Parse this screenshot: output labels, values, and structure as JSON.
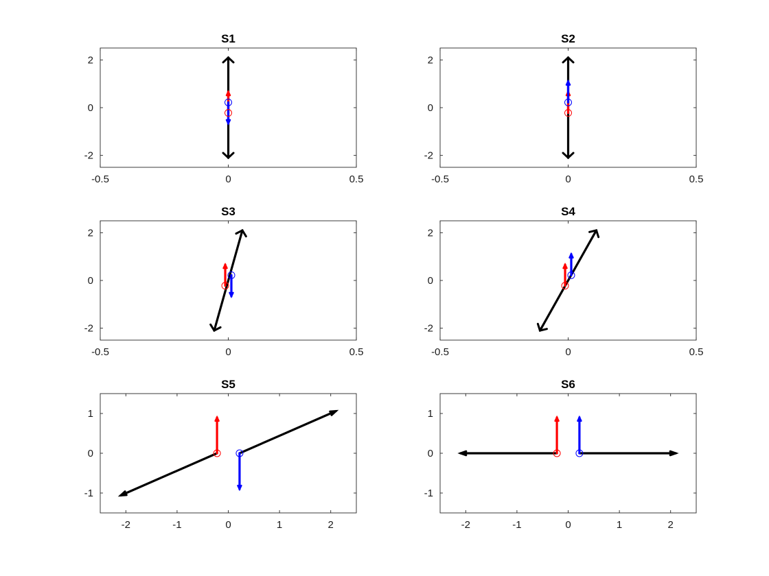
{
  "chart_data": [
    {
      "type": "line",
      "title": "S1",
      "xlim": [
        -0.5,
        0.5
      ],
      "ylim": [
        -2.5,
        2.5
      ],
      "xticks": [
        -0.5,
        0,
        0.5
      ],
      "xtick_labels": [
        "-0.5",
        "0",
        "0.5"
      ],
      "yticks": [
        -2,
        0,
        2
      ],
      "ytick_labels": [
        "-2",
        "0",
        "2"
      ],
      "grid": false,
      "black_arrows": [
        {
          "x1": 0,
          "y1": -2.1,
          "x2": 0,
          "y2": 2.1,
          "double": true
        }
      ],
      "red_marker": {
        "x": 0,
        "y": -0.22
      },
      "blue_marker": {
        "x": 0,
        "y": 0.22
      },
      "red_arrow": {
        "x1": 0,
        "y1": -0.22,
        "x2": 0,
        "y2": 0.66
      },
      "blue_arrow": {
        "x1": 0,
        "y1": 0.22,
        "x2": 0,
        "y2": -0.66
      }
    },
    {
      "type": "line",
      "title": "S2",
      "xlim": [
        -0.5,
        0.5
      ],
      "ylim": [
        -2.5,
        2.5
      ],
      "xticks": [
        -0.5,
        0,
        0.5
      ],
      "xtick_labels": [
        "-0.5",
        "0",
        "0.5"
      ],
      "yticks": [
        -2,
        0,
        2
      ],
      "ytick_labels": [
        "-2",
        "0",
        "2"
      ],
      "grid": false,
      "black_arrows": [
        {
          "x1": 0,
          "y1": -2.1,
          "x2": 0,
          "y2": 2.1,
          "double": true
        }
      ],
      "red_marker": {
        "x": 0,
        "y": -0.22
      },
      "blue_marker": {
        "x": 0,
        "y": 0.22
      },
      "red_arrow": {
        "x1": 0,
        "y1": -0.22,
        "x2": 0,
        "y2": 0.66
      },
      "blue_arrow": {
        "x1": 0,
        "y1": 0.22,
        "x2": 0,
        "y2": 1.1
      }
    },
    {
      "type": "line",
      "title": "S3",
      "xlim": [
        -0.5,
        0.5
      ],
      "ylim": [
        -2.5,
        2.5
      ],
      "xticks": [
        -0.5,
        0,
        0.5
      ],
      "xtick_labels": [
        "-0.5",
        "0",
        "0.5"
      ],
      "yticks": [
        -2,
        0,
        2
      ],
      "ytick_labels": [
        "-2",
        "0",
        "2"
      ],
      "grid": false,
      "black_arrows": [
        {
          "x1": -0.055,
          "y1": -2.1,
          "x2": 0.055,
          "y2": 2.1,
          "double": true
        }
      ],
      "red_marker": {
        "x": -0.012,
        "y": -0.22
      },
      "blue_marker": {
        "x": 0.012,
        "y": 0.22
      },
      "red_arrow": {
        "x1": -0.012,
        "y1": -0.22,
        "x2": -0.012,
        "y2": 0.66
      },
      "blue_arrow": {
        "x1": 0.012,
        "y1": 0.22,
        "x2": 0.012,
        "y2": -0.66
      }
    },
    {
      "type": "line",
      "title": "S4",
      "xlim": [
        -0.5,
        0.5
      ],
      "ylim": [
        -2.5,
        2.5
      ],
      "xticks": [
        -0.5,
        0,
        0.5
      ],
      "xtick_labels": [
        "-0.5",
        "0",
        "0.5"
      ],
      "yticks": [
        -2,
        0,
        2
      ],
      "ytick_labels": [
        "-2",
        "0",
        "2"
      ],
      "grid": false,
      "black_arrows": [
        {
          "x1": -0.11,
          "y1": -2.1,
          "x2": 0.11,
          "y2": 2.1,
          "double": true
        }
      ],
      "red_marker": {
        "x": -0.012,
        "y": -0.22
      },
      "blue_marker": {
        "x": 0.012,
        "y": 0.22
      },
      "red_arrow": {
        "x1": -0.012,
        "y1": -0.22,
        "x2": -0.012,
        "y2": 0.66
      },
      "blue_arrow": {
        "x1": 0.012,
        "y1": 0.22,
        "x2": 0.012,
        "y2": 1.1
      }
    },
    {
      "type": "line",
      "title": "S5",
      "xlim": [
        -2.5,
        2.5
      ],
      "ylim": [
        -1.5,
        1.5
      ],
      "xticks": [
        -2,
        -1,
        0,
        1,
        2
      ],
      "xtick_labels": [
        "-2",
        "-1",
        "0",
        "1",
        "2"
      ],
      "yticks": [
        -1,
        0,
        1
      ],
      "ytick_labels": [
        "-1",
        "0",
        "1"
      ],
      "grid": false,
      "black_arrows": [
        {
          "x1": -0.22,
          "y1": 0,
          "x2": -2.1,
          "y2": -1.06,
          "double": false
        },
        {
          "x1": 0.22,
          "y1": 0,
          "x2": 2.1,
          "y2": 1.06,
          "double": false
        }
      ],
      "red_marker": {
        "x": -0.22,
        "y": 0
      },
      "blue_marker": {
        "x": 0.22,
        "y": 0
      },
      "red_arrow": {
        "x1": -0.22,
        "y1": 0,
        "x2": -0.22,
        "y2": 0.9
      },
      "blue_arrow": {
        "x1": 0.22,
        "y1": 0,
        "x2": 0.22,
        "y2": -0.9
      }
    },
    {
      "type": "line",
      "title": "S6",
      "xlim": [
        -2.5,
        2.5
      ],
      "ylim": [
        -1.5,
        1.5
      ],
      "xticks": [
        -2,
        -1,
        0,
        1,
        2
      ],
      "xtick_labels": [
        "-2",
        "-1",
        "0",
        "1",
        "2"
      ],
      "yticks": [
        -1,
        0,
        1
      ],
      "ytick_labels": [
        "-1",
        "0",
        "1"
      ],
      "grid": false,
      "black_arrows": [
        {
          "x1": -0.22,
          "y1": 0,
          "x2": -2.1,
          "y2": 0,
          "double": false
        },
        {
          "x1": 0.22,
          "y1": 0,
          "x2": 2.1,
          "y2": 0,
          "double": false
        }
      ],
      "red_marker": {
        "x": -0.22,
        "y": 0
      },
      "blue_marker": {
        "x": 0.22,
        "y": 0
      },
      "red_arrow": {
        "x1": -0.22,
        "y1": 0,
        "x2": -0.22,
        "y2": 0.9
      },
      "blue_arrow": {
        "x1": 0.22,
        "y1": 0,
        "x2": 0.22,
        "y2": 0.9
      }
    }
  ],
  "colors": {
    "black_vector": "#000000",
    "red_vector": "#ff0000",
    "blue_vector": "#0000ff"
  }
}
